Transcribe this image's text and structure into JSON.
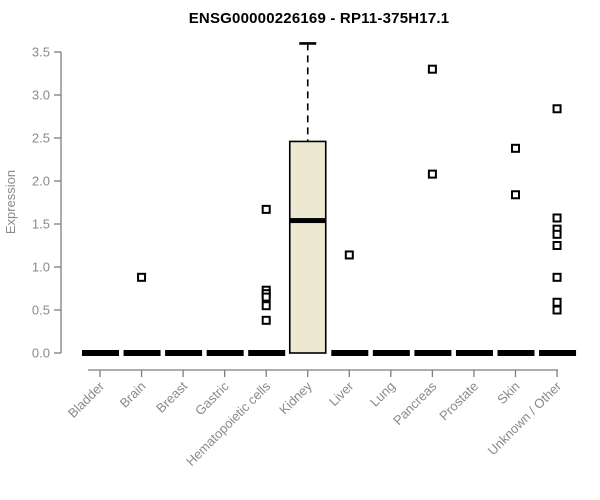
{
  "title": "ENSG00000226169 - RP11-375H17.1",
  "chart_data": {
    "type": "boxplot",
    "title": "ENSG00000226169 - RP11-375H17.1",
    "xlabel": "",
    "ylabel": "Expression",
    "ylim": [
      0,
      3.5
    ],
    "yticks": [
      0,
      0.5,
      1,
      1.5,
      2,
      2.5,
      3,
      3.5
    ],
    "ytick_labels": [
      "0.0",
      "0.5",
      "1.0",
      "1.5",
      "2.0",
      "2.5",
      "3.0",
      "3.5"
    ],
    "grid": false,
    "legend": false,
    "categories": [
      "Bladder",
      "Brain",
      "Breast",
      "Gastric",
      "Hematopoietic cells",
      "Kidney",
      "Liver",
      "Lung",
      "Pancreas",
      "Prostate",
      "Skin",
      "Unknown / Other"
    ],
    "boxes": [
      {
        "category": "Bladder",
        "min": 0,
        "q1": 0,
        "median": 0,
        "q3": 0,
        "max": 0,
        "outliers": []
      },
      {
        "category": "Brain",
        "min": 0,
        "q1": 0,
        "median": 0,
        "q3": 0,
        "max": 0,
        "outliers": [
          0.88
        ]
      },
      {
        "category": "Breast",
        "min": 0,
        "q1": 0,
        "median": 0,
        "q3": 0,
        "max": 0,
        "outliers": []
      },
      {
        "category": "Gastric",
        "min": 0,
        "q1": 0,
        "median": 0,
        "q3": 0,
        "max": 0,
        "outliers": []
      },
      {
        "category": "Hematopoietic cells",
        "min": 0,
        "q1": 0,
        "median": 0,
        "q3": 0,
        "max": 0,
        "outliers": [
          1.67,
          0.73,
          0.69,
          0.65,
          0.55,
          0.38
        ]
      },
      {
        "category": "Kidney",
        "min": 0,
        "q1": 0,
        "median": 1.54,
        "q3": 2.46,
        "max": 3.6,
        "outliers": []
      },
      {
        "category": "Liver",
        "min": 0,
        "q1": 0,
        "median": 0,
        "q3": 0,
        "max": 0,
        "outliers": [
          1.14
        ]
      },
      {
        "category": "Lung",
        "min": 0,
        "q1": 0,
        "median": 0,
        "q3": 0,
        "max": 0,
        "outliers": []
      },
      {
        "category": "Pancreas",
        "min": 0,
        "q1": 0,
        "median": 0,
        "q3": 0,
        "max": 0,
        "outliers": [
          3.3,
          2.08
        ]
      },
      {
        "category": "Prostate",
        "min": 0,
        "q1": 0,
        "median": 0,
        "q3": 0,
        "max": 0,
        "outliers": []
      },
      {
        "category": "Skin",
        "min": 0,
        "q1": 0,
        "median": 0,
        "q3": 0,
        "max": 0,
        "outliers": [
          2.38,
          1.84
        ]
      },
      {
        "category": "Unknown / Other",
        "min": 0,
        "q1": 0,
        "median": 0,
        "q3": 0,
        "max": 0,
        "outliers": [
          2.84,
          1.57,
          1.44,
          1.38,
          1.25,
          0.88,
          0.59,
          0.5
        ]
      }
    ],
    "colors": {
      "box_fill": "#EDE8D1",
      "box_border": "#000000",
      "median": "#000000",
      "axis": "#7E7E7E",
      "axis_text": "#8A8A8A",
      "title_text": "#000000",
      "outlier_fill": "#FFFFFF",
      "outlier_stroke": "#000000",
      "background": "#FFFFFF"
    }
  }
}
